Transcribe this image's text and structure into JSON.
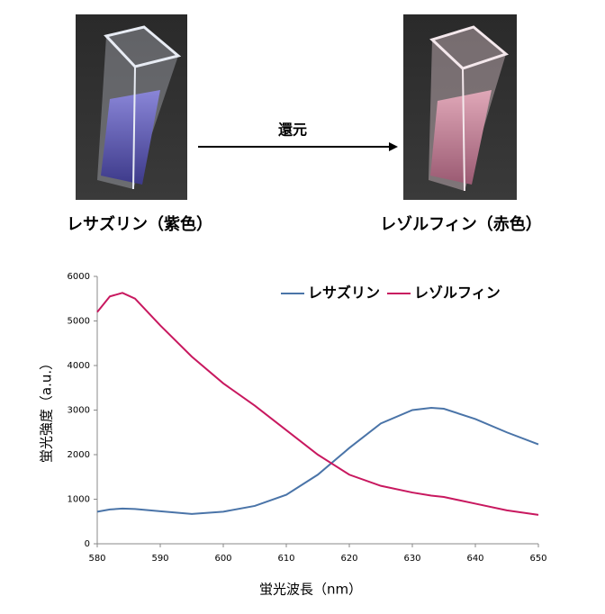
{
  "figure": {
    "reaction_label": "還元",
    "left_caption": "レサズリン（紫色）",
    "right_caption": "レゾルフィン（赤色）"
  },
  "chart_data": {
    "type": "line",
    "x_label": "蛍光波長（nm）",
    "y_label": "蛍光強度（a.u.）",
    "x": [
      580,
      582,
      584,
      586,
      590,
      595,
      600,
      605,
      610,
      615,
      620,
      625,
      630,
      633,
      635,
      640,
      645,
      650
    ],
    "series": [
      {
        "name": "レサズリン",
        "color": "#4a74a8",
        "values": [
          720,
          770,
          790,
          780,
          730,
          670,
          720,
          850,
          1100,
          1550,
          2150,
          2700,
          3000,
          3050,
          3030,
          2800,
          2500,
          2230
        ]
      },
      {
        "name": "レゾルフィン",
        "color": "#c8185f",
        "values": [
          5200,
          5550,
          5630,
          5500,
          4900,
          4200,
          3600,
          3100,
          2550,
          2000,
          1550,
          1300,
          1150,
          1080,
          1050,
          900,
          750,
          650
        ]
      }
    ],
    "xlim": [
      580,
      650
    ],
    "xticks": [
      580,
      590,
      600,
      610,
      620,
      630,
      640,
      650
    ],
    "ylim": [
      0,
      6000
    ],
    "yticks": [
      0,
      1000,
      2000,
      3000,
      4000,
      5000,
      6000
    ],
    "grid": false,
    "legend": "top-right"
  }
}
